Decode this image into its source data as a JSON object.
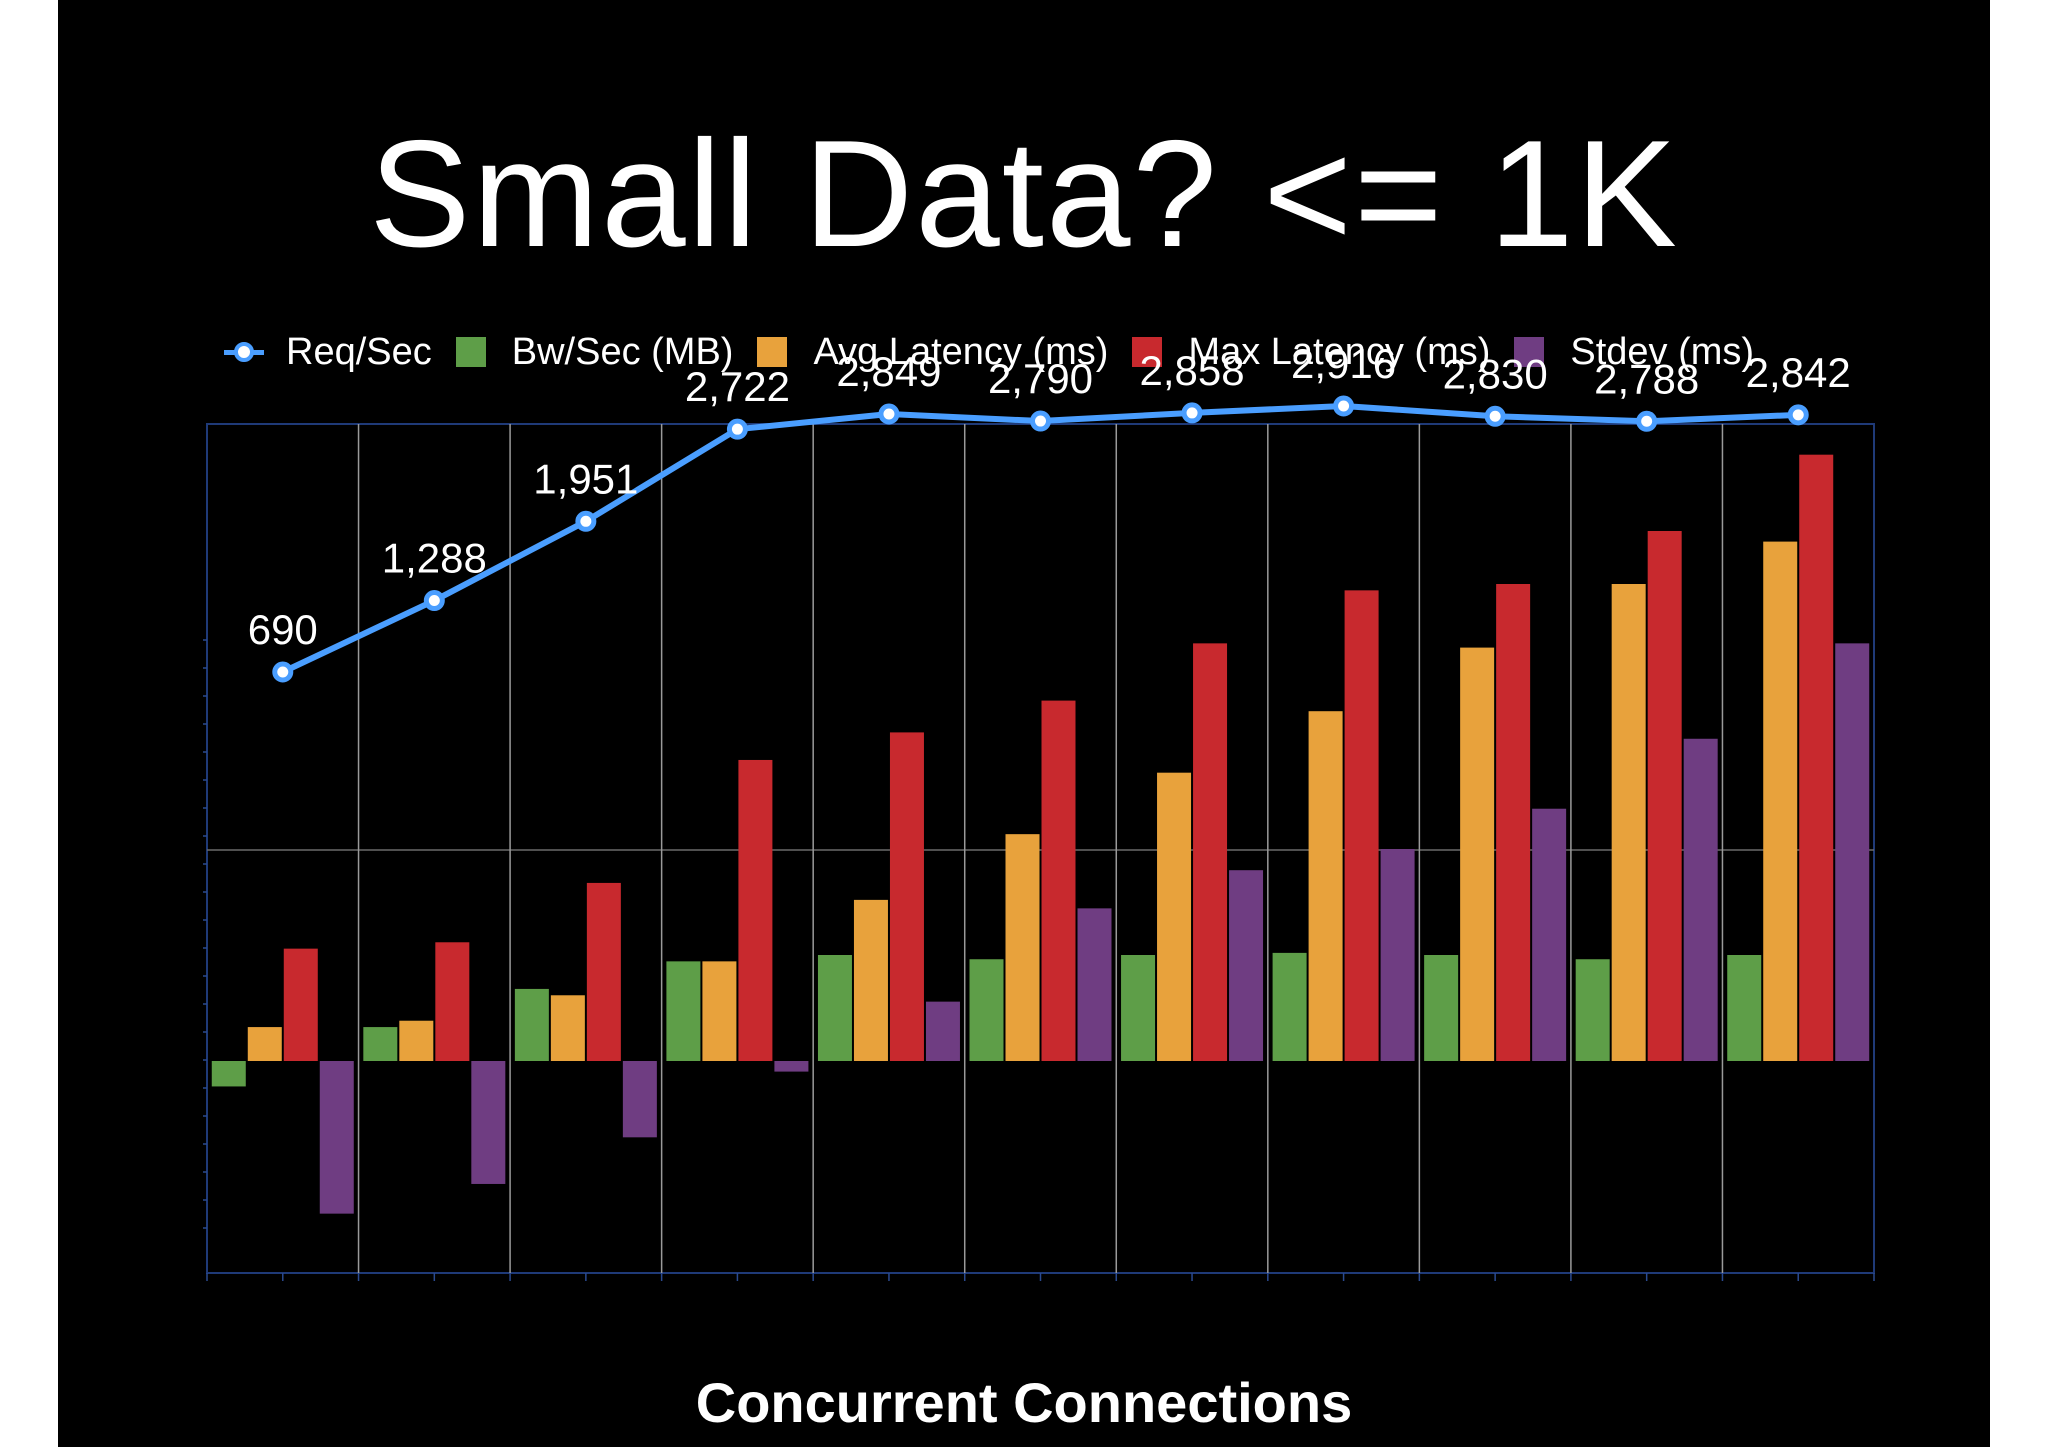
{
  "title": "Small Data? <= 1K",
  "legend": [
    {
      "label": "Req/Sec",
      "color": "#4a9eff",
      "kind": "line"
    },
    {
      "label": "Bw/Sec (MB)",
      "color": "#5e9e48",
      "kind": "bar"
    },
    {
      "label": "Avg Latency (ms)",
      "color": "#e8a23c",
      "kind": "bar"
    },
    {
      "label": "Max Latency (ms)",
      "color": "#c8292e",
      "kind": "bar"
    },
    {
      "label": "Stdev (ms)",
      "color": "#6f3d82",
      "kind": "bar"
    }
  ],
  "chart_data": {
    "type": "bar",
    "title": "Small Data? <= 1K",
    "xlabel": "Concurrent Connections",
    "ylabel": "",
    "categories": [
      "",
      "",
      "",
      "",
      "",
      "",
      "",
      "",
      "",
      "",
      ""
    ],
    "scale": "log (relative, unlabeled)",
    "grid": true,
    "legend_position": "top",
    "series": [
      {
        "name": "Bw/Sec (MB)",
        "color": "#5e9e48",
        "type": "bar",
        "values": [
          -0.12,
          0.16,
          0.34,
          0.47,
          0.5,
          0.48,
          0.5,
          0.51,
          0.5,
          0.48,
          0.5
        ]
      },
      {
        "name": "Avg Latency (ms)",
        "color": "#e8a23c",
        "type": "bar",
        "values": [
          0.16,
          0.19,
          0.31,
          0.47,
          0.76,
          1.07,
          1.36,
          1.65,
          1.95,
          2.25,
          2.45
        ]
      },
      {
        "name": "Max Latency (ms)",
        "color": "#c8292e",
        "type": "bar",
        "values": [
          0.53,
          0.56,
          0.84,
          1.42,
          1.55,
          1.7,
          1.97,
          2.22,
          2.25,
          2.5,
          2.86
        ]
      },
      {
        "name": "Stdev (ms)",
        "color": "#6f3d82",
        "type": "bar",
        "values": [
          -0.72,
          -0.58,
          -0.36,
          -0.05,
          0.28,
          0.72,
          0.9,
          1.0,
          1.19,
          1.52,
          1.97
        ]
      },
      {
        "name": "Req/Sec",
        "color": "#4a9eff",
        "type": "line",
        "values": [
          690,
          1288,
          1951,
          2722,
          2849,
          2790,
          2858,
          2916,
          2830,
          2788,
          2842
        ],
        "labels": [
          "690",
          "1,288",
          "1,951",
          "2,722",
          "2,849",
          "2,790",
          "2,858",
          "2,916",
          "2,830",
          "2,788",
          "2,842"
        ]
      }
    ]
  }
}
